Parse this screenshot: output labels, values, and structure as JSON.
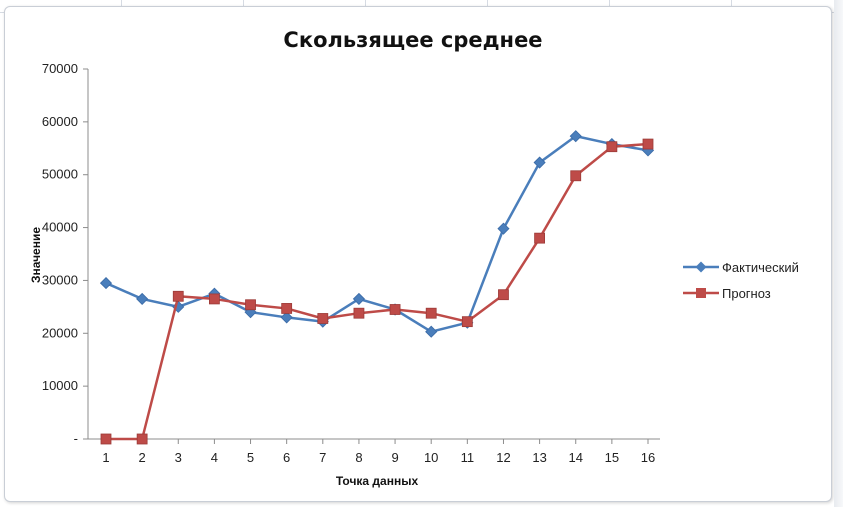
{
  "chart_data": {
    "type": "line",
    "title": "Скользящее среднее",
    "xlabel": "Точка данных",
    "ylabel": "Значение",
    "x": [
      1,
      2,
      3,
      4,
      5,
      6,
      7,
      8,
      9,
      10,
      11,
      12,
      13,
      14,
      15,
      16
    ],
    "ylim": [
      0,
      70000
    ],
    "yticks": [
      "-",
      "10000",
      "20000",
      "30000",
      "40000",
      "50000",
      "60000",
      "70000"
    ],
    "legend_position": "right",
    "grid": false,
    "series": [
      {
        "name": "Фактический",
        "color": "#4a7ebb",
        "marker": "diamond",
        "values": [
          29500,
          26500,
          25000,
          27500,
          24000,
          23000,
          22200,
          26500,
          24500,
          20300,
          22000,
          39800,
          52300,
          57300,
          55800,
          54600
        ]
      },
      {
        "name": "Прогноз",
        "color": "#be4b48",
        "marker": "square",
        "values": [
          0,
          0,
          27000,
          26500,
          25400,
          24700,
          22800,
          23800,
          24500,
          23800,
          22200,
          27300,
          38000,
          49800,
          55300,
          55800
        ]
      }
    ]
  }
}
